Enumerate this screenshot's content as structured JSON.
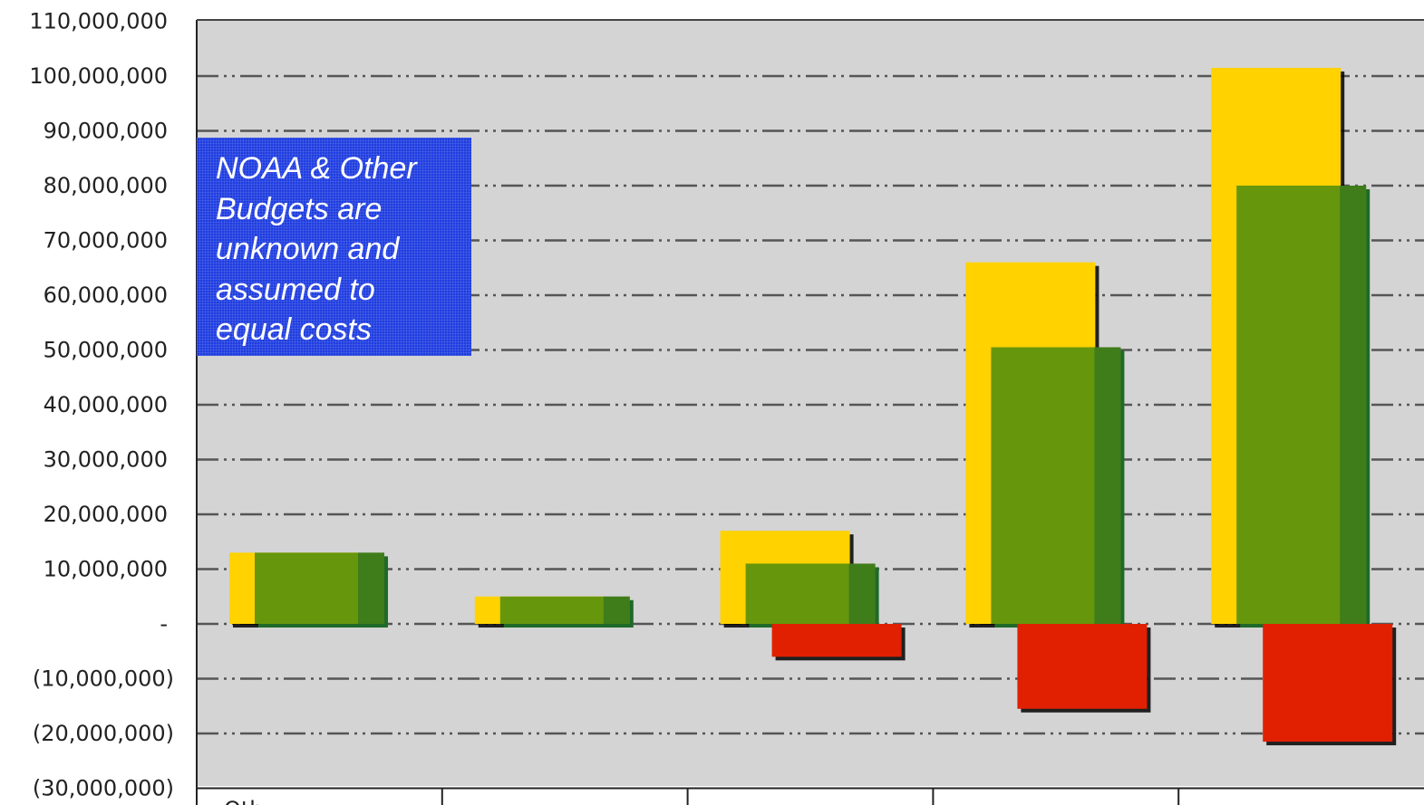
{
  "chart_data": {
    "type": "bar",
    "title": "",
    "xlabel": "",
    "ylabel": "",
    "ylim": [
      -30000000,
      110000000
    ],
    "y_ticks": [
      110000000,
      100000000,
      90000000,
      80000000,
      70000000,
      60000000,
      50000000,
      40000000,
      30000000,
      20000000,
      10000000,
      0,
      -10000000,
      -20000000,
      -30000000
    ],
    "y_tick_labels": [
      "110,000,000",
      "100,000,000",
      "90,000,000",
      "80,000,000",
      "70,000,000",
      "60,000,000",
      "50,000,000",
      "40,000,000",
      "30,000,000",
      "20,000,000",
      "10,000,000",
      "-",
      "(10,000,000)",
      "(20,000,000)",
      "(30,000,000)"
    ],
    "categories": [
      "Oth...",
      "",
      "",
      "",
      ""
    ],
    "series": [
      {
        "color": "#ffd200",
        "values": [
          13000000,
          5000000,
          17000000,
          66000000,
          101500000
        ]
      },
      {
        "color": "#66960c",
        "values": [
          13000000,
          5000000,
          11000000,
          50500000,
          80000000
        ]
      },
      {
        "color": "#e02000",
        "values": [
          0,
          0,
          -6000000,
          -15500000,
          -21500000
        ]
      }
    ],
    "grid": true,
    "annotation": "NOAA & Other Budgets are unknown and assumed to equal costs"
  },
  "note": {
    "lines": [
      "NOAA & Other",
      "Budgets are",
      "unknown and",
      "assumed to",
      "equal costs"
    ]
  }
}
